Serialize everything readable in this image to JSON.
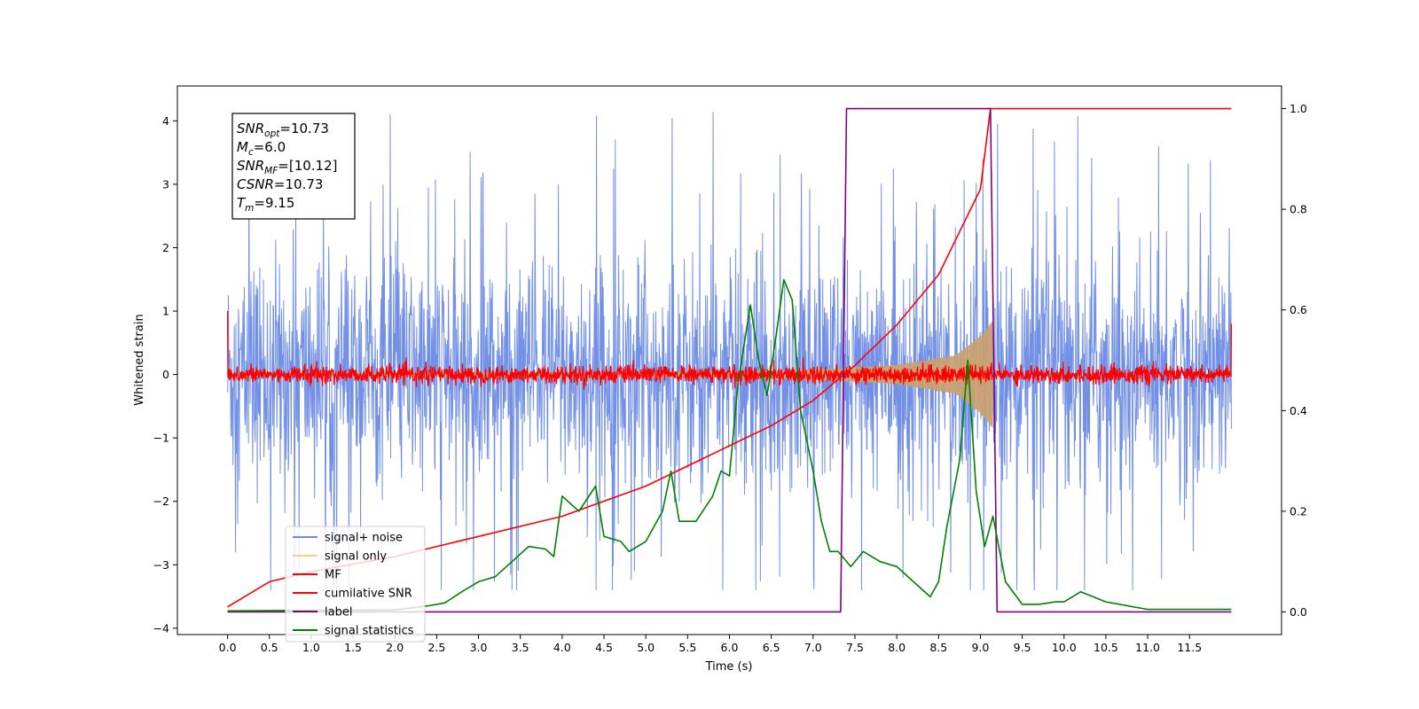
{
  "chart_data": {
    "type": "line",
    "xlabel": "Time (s)",
    "ylabel_left": "Whitened strain",
    "ylabel_right": "",
    "xlim": [
      -0.6,
      12.6
    ],
    "ylim_left": [
      -4.1,
      4.55
    ],
    "ylim_right": [
      -0.045,
      1.045
    ],
    "x_ticks": [
      "0.0",
      "0.5",
      "1.0",
      "1.5",
      "2.0",
      "2.5",
      "3.0",
      "3.5",
      "4.0",
      "4.5",
      "5.0",
      "5.5",
      "6.0",
      "6.5",
      "7.0",
      "7.5",
      "8.0",
      "8.5",
      "9.0",
      "9.5",
      "10.0",
      "10.5",
      "11.0",
      "11.5"
    ],
    "x_tick_values": [
      0,
      0.5,
      1,
      1.5,
      2,
      2.5,
      3,
      3.5,
      4,
      4.5,
      5,
      5.5,
      6,
      6.5,
      7,
      7.5,
      8,
      8.5,
      9,
      9.5,
      10,
      10.5,
      11,
      11.5
    ],
    "y_left_ticks": [
      "−4",
      "−3",
      "−2",
      "−1",
      "0",
      "1",
      "2",
      "3",
      "4"
    ],
    "y_left_tick_values": [
      -4,
      -3,
      -2,
      -1,
      0,
      1,
      2,
      3,
      4
    ],
    "y_right_ticks": [
      "0.0",
      "0.2",
      "0.4",
      "0.6",
      "0.8",
      "1.0"
    ],
    "y_right_tick_values": [
      0,
      0.2,
      0.4,
      0.6,
      0.8,
      1.0
    ],
    "legend_placement": "lower-left",
    "grid": false,
    "annotation": {
      "lines": [
        {
          "base": "SNR",
          "sub": "opt",
          "rest": "=10.73"
        },
        {
          "base": "M",
          "sub": "c",
          "rest": "=6.0"
        },
        {
          "base": "SNR",
          "sub": "MF",
          "rest": "=[10.12]"
        },
        {
          "base": "CSNR",
          "sub": "",
          "rest": "=10.73"
        },
        {
          "base": "T",
          "sub": "m",
          "rest": "=9.15"
        }
      ]
    },
    "series": [
      {
        "name": "signal+ noise",
        "axis": "left",
        "color": "#6b8ae6",
        "style": "noise",
        "x_range": [
          0,
          12.0
        ],
        "envelope": 1.75,
        "spike_max": 4.15
      },
      {
        "name": "signal only",
        "axis": "left",
        "color": "#f5c069",
        "style": "chirp",
        "x_range": [
          0,
          9.15
        ],
        "amp_points": [
          [
            0,
            0.02
          ],
          [
            6.0,
            0.05
          ],
          [
            7.0,
            0.08
          ],
          [
            8.0,
            0.15
          ],
          [
            8.7,
            0.3
          ],
          [
            9.0,
            0.6
          ],
          [
            9.15,
            0.85
          ]
        ]
      },
      {
        "name": "MF",
        "axis": "left",
        "color": "#ff0000",
        "style": "noise",
        "x_range": [
          0,
          12.0
        ],
        "envelope": 0.12,
        "edges": {
          "start": 1.0,
          "end": 0.8
        }
      },
      {
        "name": "cumilative SNR",
        "axis": "right",
        "color": "#ff0000",
        "style": "line",
        "points": [
          [
            0,
            0.01
          ],
          [
            0.5,
            0.06
          ],
          [
            1.0,
            0.08
          ],
          [
            2.0,
            0.11
          ],
          [
            3.0,
            0.15
          ],
          [
            4.0,
            0.19
          ],
          [
            5.0,
            0.25
          ],
          [
            6.0,
            0.33
          ],
          [
            6.5,
            0.37
          ],
          [
            7.0,
            0.42
          ],
          [
            7.5,
            0.49
          ],
          [
            8.0,
            0.57
          ],
          [
            8.5,
            0.67
          ],
          [
            9.0,
            0.84
          ],
          [
            9.12,
            1.0
          ],
          [
            12.0,
            1.0
          ]
        ]
      },
      {
        "name": "label",
        "axis": "right",
        "color": "#800080",
        "style": "line",
        "points": [
          [
            0,
            0
          ],
          [
            7.33,
            0
          ],
          [
            7.4,
            1.0
          ],
          [
            9.12,
            1.0
          ],
          [
            9.2,
            0
          ],
          [
            12.0,
            0
          ]
        ]
      },
      {
        "name": "signal statistics",
        "axis": "right",
        "color": "#008000",
        "style": "line",
        "points": [
          [
            0,
            0.002
          ],
          [
            1.0,
            0.003
          ],
          [
            2.0,
            0.004
          ],
          [
            2.4,
            0.012
          ],
          [
            2.6,
            0.018
          ],
          [
            2.8,
            0.04
          ],
          [
            3.0,
            0.06
          ],
          [
            3.2,
            0.07
          ],
          [
            3.4,
            0.1
          ],
          [
            3.6,
            0.13
          ],
          [
            3.8,
            0.125
          ],
          [
            3.9,
            0.11
          ],
          [
            4.0,
            0.23
          ],
          [
            4.2,
            0.2
          ],
          [
            4.4,
            0.25
          ],
          [
            4.5,
            0.15
          ],
          [
            4.7,
            0.14
          ],
          [
            4.8,
            0.12
          ],
          [
            5.0,
            0.14
          ],
          [
            5.2,
            0.2
          ],
          [
            5.3,
            0.28
          ],
          [
            5.4,
            0.18
          ],
          [
            5.6,
            0.18
          ],
          [
            5.8,
            0.23
          ],
          [
            5.9,
            0.28
          ],
          [
            6.0,
            0.27
          ],
          [
            6.1,
            0.45
          ],
          [
            6.25,
            0.61
          ],
          [
            6.35,
            0.5
          ],
          [
            6.45,
            0.43
          ],
          [
            6.55,
            0.54
          ],
          [
            6.65,
            0.66
          ],
          [
            6.75,
            0.62
          ],
          [
            6.85,
            0.4
          ],
          [
            7.0,
            0.28
          ],
          [
            7.1,
            0.18
          ],
          [
            7.2,
            0.12
          ],
          [
            7.3,
            0.12
          ],
          [
            7.45,
            0.09
          ],
          [
            7.6,
            0.12
          ],
          [
            7.8,
            0.1
          ],
          [
            8.0,
            0.09
          ],
          [
            8.2,
            0.06
          ],
          [
            8.4,
            0.03
          ],
          [
            8.5,
            0.06
          ],
          [
            8.6,
            0.17
          ],
          [
            8.75,
            0.3
          ],
          [
            8.85,
            0.5
          ],
          [
            8.95,
            0.24
          ],
          [
            9.05,
            0.13
          ],
          [
            9.15,
            0.19
          ],
          [
            9.3,
            0.06
          ],
          [
            9.5,
            0.015
          ],
          [
            9.7,
            0.015
          ],
          [
            9.9,
            0.02
          ],
          [
            10.0,
            0.02
          ],
          [
            10.1,
            0.03
          ],
          [
            10.2,
            0.04
          ],
          [
            10.5,
            0.02
          ],
          [
            11.0,
            0.005
          ],
          [
            12.0,
            0.005
          ]
        ]
      }
    ]
  }
}
